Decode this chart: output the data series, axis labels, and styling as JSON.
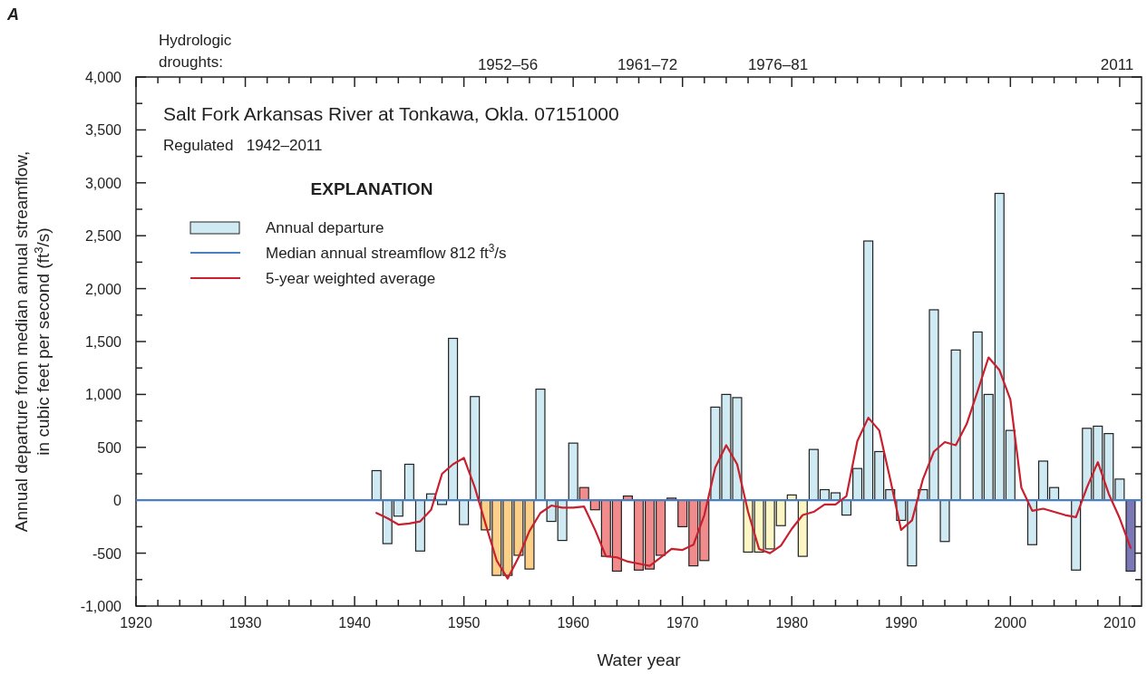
{
  "chart_data": {
    "type": "bar",
    "title": "Salt Fork Arkansas River at Tonkawa, Okla. 07151000",
    "subtitle": "Regulated   1942–2011",
    "xlabel": "Water year",
    "ylabel": "Annual departure from median annual streamflow,\nin cubic feet per second (ft$^{3}$/s)",
    "legend_title": "EXPLANATION",
    "legend": "top left",
    "grid": false,
    "xlim": [
      1920,
      2012
    ],
    "ylim": [
      -1000,
      4000
    ],
    "xticks": [
      1920,
      {
        "value": 1922,
        "label": null
      },
      {
        "value": 1924,
        "label": null
      },
      {
        "value": 1926,
        "label": null
      },
      {
        "value": 1928,
        "label": null
      },
      1930,
      {
        "value": 1932,
        "label": null
      },
      {
        "value": 1934,
        "label": null
      },
      {
        "value": 1936,
        "label": null
      },
      {
        "value": 1938,
        "label": null
      },
      1940,
      {
        "value": 1942,
        "label": null
      },
      {
        "value": 1944,
        "label": null
      },
      {
        "value": 1946,
        "label": null
      },
      {
        "value": 1948,
        "label": null
      },
      1950,
      {
        "value": 1952,
        "label": null
      },
      {
        "value": 1954,
        "label": null
      },
      {
        "value": 1956,
        "label": null
      },
      {
        "value": 1958,
        "label": null
      },
      1960,
      {
        "value": 1962,
        "label": null
      },
      {
        "value": 1964,
        "label": null
      },
      {
        "value": 1966,
        "label": null
      },
      {
        "value": 1968,
        "label": null
      },
      1970,
      {
        "value": 1972,
        "label": null
      },
      {
        "value": 1974,
        "label": null
      },
      {
        "value": 1976,
        "label": null
      },
      {
        "value": 1978,
        "label": null
      },
      1980,
      {
        "value": 1982,
        "label": null
      },
      {
        "value": 1984,
        "label": null
      },
      {
        "value": 1986,
        "label": null
      },
      {
        "value": 1988,
        "label": null
      },
      1990,
      {
        "value": 1992,
        "label": null
      },
      {
        "value": 1994,
        "label": null
      },
      {
        "value": 1996,
        "label": null
      },
      {
        "value": 1998,
        "label": null
      },
      2000,
      {
        "value": 2002,
        "label": null
      },
      {
        "value": 2004,
        "label": null
      },
      {
        "value": 2006,
        "label": null
      },
      {
        "value": 2008,
        "label": null
      },
      2010
    ],
    "yticks": [
      {
        "value": -1000,
        "label": "-1,000"
      },
      {
        "value": -750,
        "label": null
      },
      -500,
      {
        "value": -250,
        "label": null
      },
      0,
      {
        "value": 250,
        "label": null
      },
      500,
      {
        "value": 750,
        "label": null
      },
      {
        "value": 1000,
        "label": "1,000"
      },
      {
        "value": 1250,
        "label": null
      },
      {
        "value": 1500,
        "label": "1,500"
      },
      {
        "value": 1750,
        "label": null
      },
      {
        "value": 2000,
        "label": "2,000"
      },
      {
        "value": 2250,
        "label": null
      },
      {
        "value": 2500,
        "label": "2,500"
      },
      {
        "value": 2750,
        "label": null
      },
      {
        "value": 3000,
        "label": "3,000"
      },
      {
        "value": 3250,
        "label": null
      },
      {
        "value": 3500,
        "label": "3,500"
      },
      {
        "value": 3750,
        "label": null
      },
      {
        "value": 4000,
        "label": "4,000"
      }
    ],
    "ref_lines": [
      {
        "axis": "y",
        "value": 0,
        "label": "Median annual streamflow 812 ft$^{3}$/s",
        "color": "#4a7fc1"
      }
    ],
    "annotations": [
      "A",
      "Hydrologic\ndroughts:",
      "1952–56",
      "1961–72",
      "1976–81",
      "2011"
    ],
    "series": [
      {
        "name": "Annual departure",
        "color": "#cfeaf2",
        "x": [
          1942,
          1943,
          1944,
          1945,
          1946,
          1947,
          1948,
          1949,
          1950,
          1951,
          1952,
          1953,
          1954,
          1955,
          1956,
          1957,
          1958,
          1959,
          1960,
          1961,
          1962,
          1963,
          1964,
          1965,
          1966,
          1967,
          1968,
          1969,
          1970,
          1971,
          1972,
          1973,
          1974,
          1975,
          1976,
          1977,
          1978,
          1979,
          1980,
          1981,
          1982,
          1983,
          1984,
          1985,
          1986,
          1987,
          1988,
          1989,
          1990,
          1991,
          1992,
          1993,
          1994,
          1995,
          1996,
          1997,
          1998,
          1999,
          2000,
          2001,
          2002,
          2003,
          2004,
          2005,
          2006,
          2007,
          2008,
          2009,
          2010,
          2011
        ],
        "values": [
          280,
          -410,
          -150,
          340,
          -480,
          60,
          -40,
          1530,
          -230,
          980,
          -280,
          -710,
          -710,
          -520,
          -650,
          1050,
          -200,
          -380,
          540,
          120,
          -90,
          -530,
          -670,
          40,
          -660,
          -650,
          -520,
          20,
          -250,
          -620,
          -570,
          880,
          1000,
          970,
          -490,
          -490,
          -460,
          -240,
          50,
          -530,
          480,
          100,
          70,
          -140,
          300,
          2450,
          460,
          100,
          -190,
          -620,
          100,
          1800,
          -390,
          1420,
          0,
          1590,
          1000,
          2900,
          660,
          0,
          -420,
          370,
          120,
          0,
          -660,
          680,
          700,
          630,
          200,
          -670
        ],
        "colors": [
          "#cfeaf2",
          "#cfeaf2",
          "#cfeaf2",
          "#cfeaf2",
          "#cfeaf2",
          "#cfeaf2",
          "#cfeaf2",
          "#cfeaf2",
          "#cfeaf2",
          "#cfeaf2",
          "#fdd08a",
          "#fdd08a",
          "#fdd08a",
          "#fdd08a",
          "#fdd08a",
          "#cfeaf2",
          "#cfeaf2",
          "#cfeaf2",
          "#cfeaf2",
          "#f28b8b",
          "#f28b8b",
          "#f28b8b",
          "#f28b8b",
          "#f28b8b",
          "#f28b8b",
          "#f28b8b",
          "#f28b8b",
          "#f28b8b",
          "#f28b8b",
          "#f28b8b",
          "#f28b8b",
          "#cfeaf2",
          "#cfeaf2",
          "#cfeaf2",
          "#fbf6c4",
          "#fbf6c4",
          "#fbf6c4",
          "#fbf6c4",
          "#fbf6c4",
          "#fbf6c4",
          "#cfeaf2",
          "#cfeaf2",
          "#cfeaf2",
          "#cfeaf2",
          "#cfeaf2",
          "#cfeaf2",
          "#cfeaf2",
          "#cfeaf2",
          "#cfeaf2",
          "#cfeaf2",
          "#cfeaf2",
          "#cfeaf2",
          "#cfeaf2",
          "#cfeaf2",
          "#cfeaf2",
          "#cfeaf2",
          "#cfeaf2",
          "#cfeaf2",
          "#cfeaf2",
          "#cfeaf2",
          "#cfeaf2",
          "#cfeaf2",
          "#cfeaf2",
          "#cfeaf2",
          "#cfeaf2",
          "#cfeaf2",
          "#cfeaf2",
          "#cfeaf2",
          "#cfeaf2",
          "#7b78b8"
        ]
      },
      {
        "name": "5-year weighted average",
        "type": "line",
        "color": "#c8202e",
        "x": [
          1942,
          1943,
          1944,
          1945,
          1946,
          1947,
          1948,
          1949,
          1950,
          1951,
          1952,
          1953,
          1954,
          1955,
          1956,
          1957,
          1958,
          1959,
          1960,
          1961,
          1962,
          1963,
          1964,
          1965,
          1966,
          1967,
          1968,
          1969,
          1970,
          1971,
          1972,
          1973,
          1974,
          1975,
          1976,
          1977,
          1978,
          1979,
          1980,
          1981,
          1982,
          1983,
          1984,
          1985,
          1986,
          1987,
          1988,
          1989,
          1990,
          1991,
          1992,
          1993,
          1994,
          1995,
          1996,
          1997,
          1998,
          1999,
          2000,
          2001,
          2002,
          2003,
          2004,
          2005,
          2006,
          2007,
          2008,
          2009,
          2010,
          2011
        ],
        "values": [
          -120,
          -170,
          -230,
          -220,
          -200,
          -90,
          250,
          340,
          400,
          120,
          -230,
          -570,
          -740,
          -540,
          -290,
          -120,
          -50,
          -70,
          -70,
          -60,
          -280,
          -530,
          -540,
          -580,
          -600,
          -620,
          -540,
          -460,
          -470,
          -420,
          -140,
          310,
          520,
          340,
          -110,
          -460,
          -500,
          -430,
          -270,
          -140,
          -110,
          -40,
          -40,
          40,
          560,
          780,
          660,
          200,
          -280,
          -190,
          200,
          460,
          550,
          520,
          720,
          1030,
          1350,
          1230,
          950,
          120,
          -100,
          -80,
          -110,
          -140,
          -160,
          120,
          360,
          60,
          -170,
          -450
        ]
      }
    ]
  }
}
